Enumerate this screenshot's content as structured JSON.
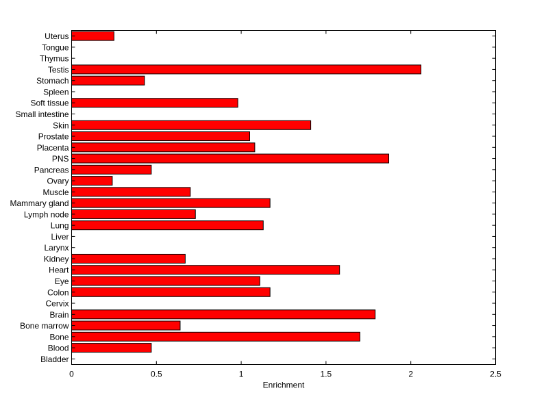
{
  "chart_data": {
    "type": "bar",
    "orientation": "horizontal",
    "title": "",
    "xlabel": "Enrichment",
    "ylabel": "",
    "xlim": [
      0,
      2.5
    ],
    "xticks": [
      "0",
      "0.5",
      "1",
      "1.5",
      "2",
      "2.5"
    ],
    "grid": false,
    "legend": "none",
    "categories": [
      "Bladder",
      "Blood",
      "Bone",
      "Bone marrow",
      "Brain",
      "Cervix",
      "Colon",
      "Eye",
      "Heart",
      "Kidney",
      "Larynx",
      "Liver",
      "Lung",
      "Lymph node",
      "Mammary gland",
      "Muscle",
      "Ovary",
      "Pancreas",
      "PNS",
      "Placenta",
      "Prostate",
      "Skin",
      "Small intestine",
      "Soft tissue",
      "Spleen",
      "Stomach",
      "Testis",
      "Thymus",
      "Tongue",
      "Uterus"
    ],
    "values": [
      0,
      0.47,
      1.7,
      0.64,
      1.79,
      0,
      1.17,
      1.11,
      1.58,
      0.67,
      0,
      0,
      1.13,
      0.73,
      1.17,
      0.7,
      0.24,
      0.47,
      1.87,
      1.08,
      1.05,
      1.41,
      0,
      0.98,
      0,
      0.43,
      2.06,
      0,
      0,
      0.25
    ],
    "bar_color": "#ff0000",
    "edge_color": "#000000"
  }
}
